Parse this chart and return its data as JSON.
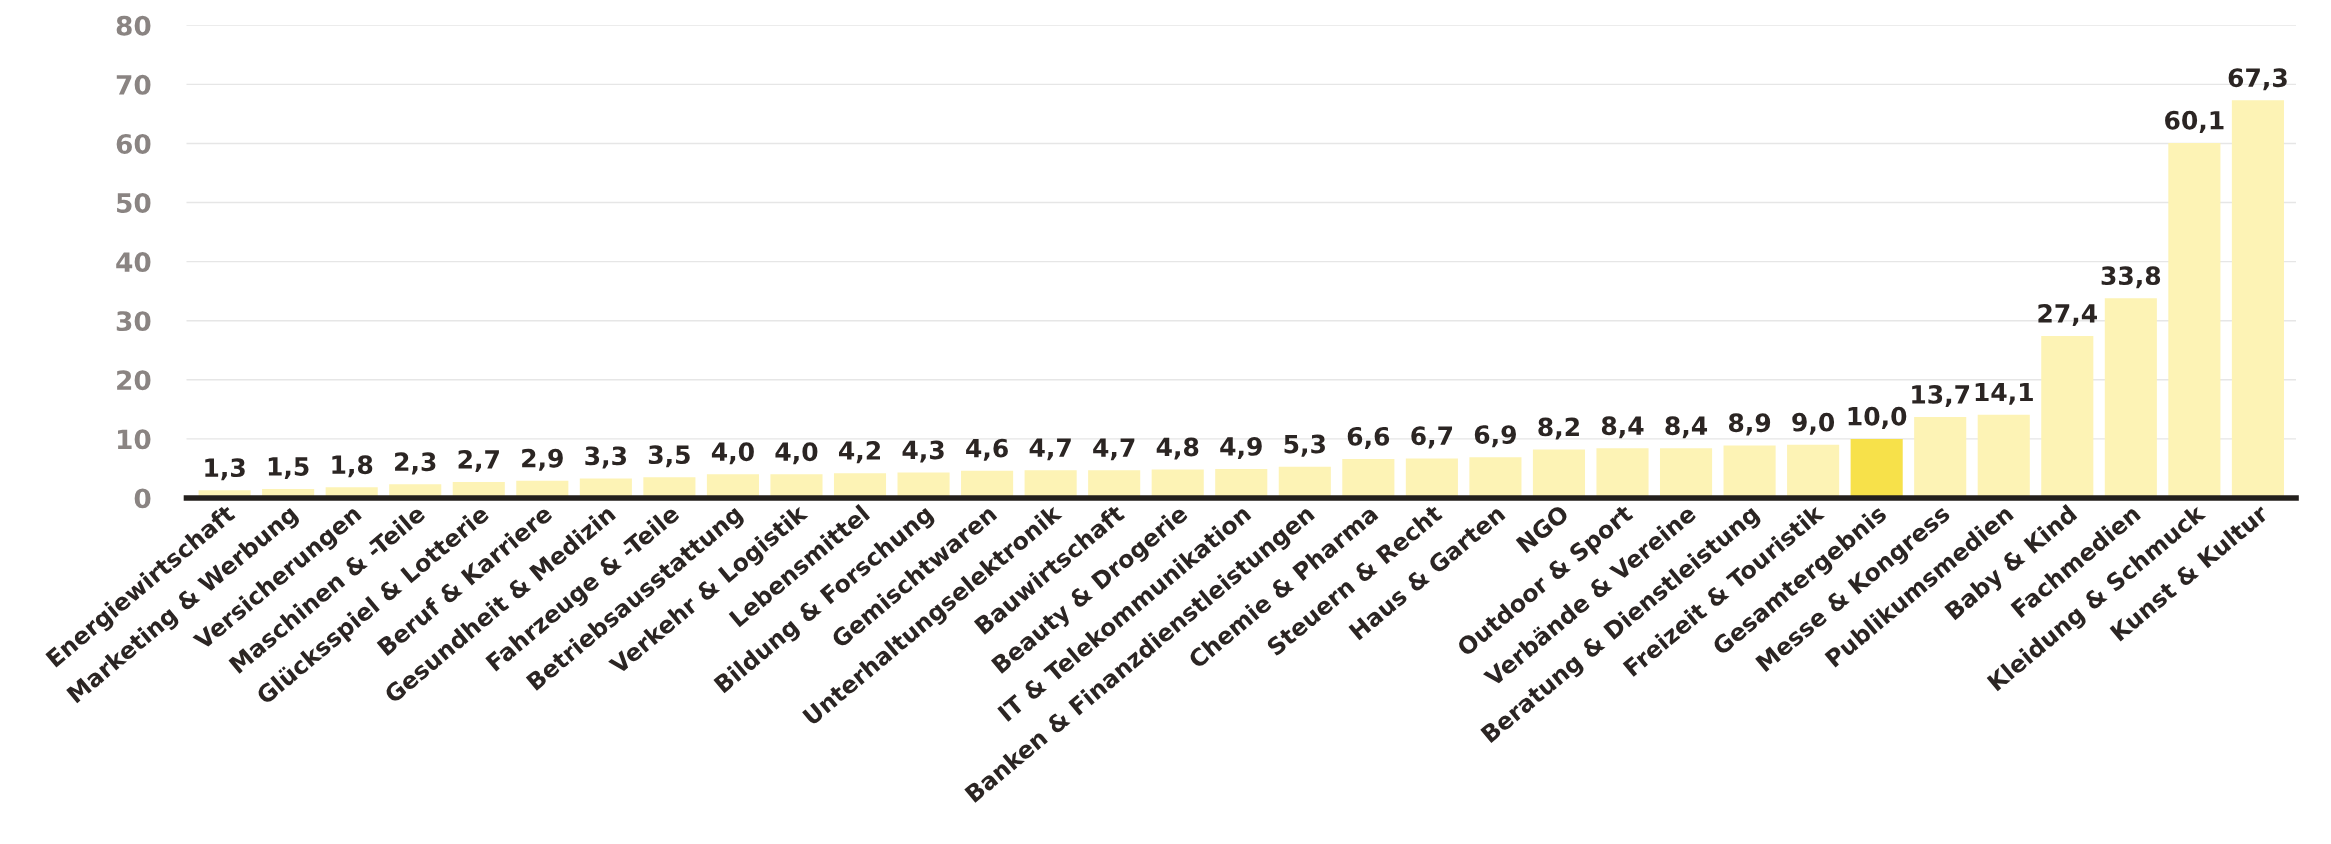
{
  "chart_data": {
    "type": "bar",
    "categories": [
      "Energiewirtschaft",
      "Marketing & Werbung",
      "Versicherungen",
      "Maschinen & -Teile",
      "Glücksspiel & Lotterie",
      "Beruf & Karriere",
      "Gesundheit & Medizin",
      "Fahrzeuge & -Teile",
      "Betriebsausstattung",
      "Verkehr & Logistik",
      "Lebensmittel",
      "Bildung & Forschung",
      "Gemischtwaren",
      "Unterhaltungselektronik",
      "Bauwirtschaft",
      "Beauty & Drogerie",
      "IT & Telekommunikation",
      "Banken & Finanzdienstleistungen",
      "Chemie & Pharma",
      "Steuern & Recht",
      "Haus & Garten",
      "NGO",
      "Outdoor & Sport",
      "Verbände & Vereine",
      "Beratung & Dienstleistung",
      "Freizeit & Touristik",
      "Gesamtergebnis",
      "Messe & Kongress",
      "Publikumsmedien",
      "Baby & Kind",
      "Fachmedien",
      "Kleidung & Schmuck",
      "Kunst & Kultur"
    ],
    "values": [
      1.3,
      1.5,
      1.8,
      2.3,
      2.7,
      2.9,
      3.3,
      3.5,
      4.0,
      4.0,
      4.2,
      4.3,
      4.6,
      4.7,
      4.7,
      4.8,
      4.9,
      5.3,
      6.6,
      6.7,
      6.9,
      8.2,
      8.4,
      8.4,
      8.9,
      9.0,
      10.0,
      13.7,
      14.1,
      27.4,
      33.8,
      60.1,
      67.3
    ],
    "value_labels": [
      "1,3",
      "1,5",
      "1,8",
      "2,3",
      "2,7",
      "2,9",
      "3,3",
      "3,5",
      "4,0",
      "4,0",
      "4,2",
      "4,3",
      "4,6",
      "4,7",
      "4,7",
      "4,8",
      "4,9",
      "5,3",
      "6,6",
      "6,7",
      "6,9",
      "8,2",
      "8,4",
      "8,4",
      "8,9",
      "9,0",
      "10,0",
      "13,7",
      "14,1",
      "27,4",
      "33,8",
      "60,1",
      "67,3"
    ],
    "colors": [
      "#fdf3b5",
      "#fdf3b5",
      "#fdf3b5",
      "#fdf3b5",
      "#fdf3b5",
      "#fdf3b5",
      "#fdf3b5",
      "#fdf3b5",
      "#fdf3b5",
      "#fdf3b5",
      "#fdf3b5",
      "#fdf3b5",
      "#fdf3b5",
      "#fdf3b5",
      "#fdf3b5",
      "#fdf3b5",
      "#fdf3b5",
      "#fdf3b5",
      "#fdf3b5",
      "#fdf3b5",
      "#fdf3b5",
      "#fdf3b5",
      "#fdf3b5",
      "#fdf3b5",
      "#fdf3b5",
      "#fdf3b5",
      "#f7e14a",
      "#fdf3b5",
      "#fdf3b5",
      "#fdf3b5",
      "#fdf3b5",
      "#fdf3b5",
      "#fdf3b5"
    ],
    "ylim": [
      0,
      80
    ],
    "yticks": [
      0,
      10,
      20,
      30,
      40,
      50,
      60,
      70,
      80
    ],
    "grid": "y"
  }
}
